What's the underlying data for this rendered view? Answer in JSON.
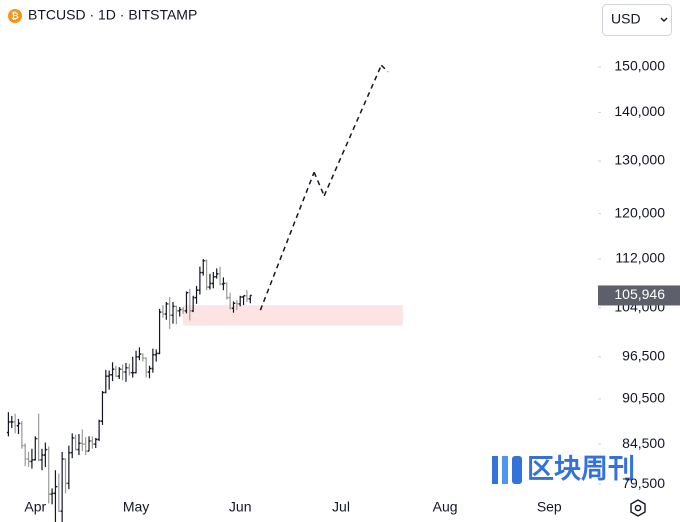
{
  "chart_data": {
    "type": "ohlc",
    "title": "BTCUSD · 1D · BITSTAMP",
    "currency": "USD",
    "watermark": "区块周刊",
    "log_scale": true,
    "grid": false,
    "up_color": "#131722",
    "down_color": "#9a9a9a",
    "ylim": [
      78200,
      166100
    ],
    "yticks": [
      {
        "value": 79500,
        "label": "79,500"
      },
      {
        "value": 84500,
        "label": "84,500"
      },
      {
        "value": 90500,
        "label": "90,500"
      },
      {
        "value": 96500,
        "label": "96,500"
      },
      {
        "value": 104000,
        "label": "104,000"
      },
      {
        "value": 112000,
        "label": "112,000"
      },
      {
        "value": 120000,
        "label": "120,000"
      },
      {
        "value": 130000,
        "label": "130,000"
      },
      {
        "value": 140000,
        "label": "140,000"
      },
      {
        "value": 150000,
        "label": "150,000"
      }
    ],
    "last_price": {
      "value": 105946,
      "label": "105,946"
    },
    "zone": {
      "low": 101200,
      "high": 104400,
      "color": "#fde4e4"
    },
    "categories": [
      null,
      null,
      null,
      null,
      null,
      null,
      null,
      null,
      "Apr",
      null,
      null,
      null,
      null,
      null,
      null,
      null,
      null,
      null,
      null,
      null,
      null,
      null,
      null,
      null,
      null,
      null,
      null,
      null,
      null,
      null,
      null,
      null,
      null,
      null,
      null,
      null,
      null,
      null,
      "May",
      null,
      null,
      null,
      null,
      null,
      null,
      null,
      null,
      null,
      null,
      null,
      null,
      null,
      null,
      null,
      null,
      null,
      null,
      null,
      null,
      null,
      null,
      null,
      null,
      null,
      null,
      null,
      null,
      null,
      null,
      "Jun",
      null,
      null,
      null,
      null,
      null,
      null,
      null,
      null,
      null,
      null,
      null,
      null,
      null,
      null,
      null,
      null,
      null,
      null,
      null,
      null,
      null,
      null,
      null,
      null,
      null,
      null,
      null,
      null,
      null,
      "Jul",
      null,
      null,
      null,
      null,
      null,
      null,
      null,
      null,
      null,
      null,
      null,
      null,
      null,
      null,
      null,
      null,
      null,
      null,
      null,
      null,
      null,
      null,
      null,
      null,
      null,
      null,
      null,
      null,
      null,
      null,
      "Aug",
      null,
      null,
      null,
      null,
      null,
      null,
      null,
      null,
      null,
      null,
      null,
      null,
      null,
      null,
      null,
      null,
      null,
      null,
      null,
      null,
      null,
      null,
      null,
      null,
      null,
      null,
      null,
      null,
      null,
      null,
      "Sep",
      null,
      null,
      null,
      null,
      null,
      null,
      null,
      null,
      null,
      null,
      null,
      null,
      null,
      null
    ],
    "values": [
      [
        86000,
        88700,
        85500,
        87400
      ],
      [
        87400,
        88200,
        86600,
        87400
      ],
      [
        87400,
        88500,
        85900,
        86900
      ],
      [
        86900,
        87800,
        85800,
        87200
      ],
      [
        87200,
        87500,
        83900,
        84300
      ],
      [
        84300,
        84600,
        81700,
        82600
      ],
      [
        82600,
        83500,
        81600,
        82300
      ],
      [
        82300,
        83900,
        81400,
        82500
      ],
      [
        82500,
        85500,
        82400,
        85200
      ],
      [
        85200,
        88500,
        82300,
        82500
      ],
      [
        82500,
        83900,
        81200,
        83100
      ],
      [
        83100,
        84700,
        81600,
        83800
      ],
      [
        83800,
        84200,
        77200,
        78300
      ],
      [
        78300,
        79000,
        77100,
        78400
      ],
      [
        78400,
        81200,
        74500,
        79200
      ],
      [
        79200,
        80800,
        76200,
        76300
      ],
      [
        76300,
        83500,
        74600,
        82600
      ],
      [
        82600,
        82700,
        78400,
        79600
      ],
      [
        79600,
        84300,
        78900,
        83400
      ],
      [
        83400,
        85900,
        82700,
        85300
      ],
      [
        85300,
        85700,
        83700,
        83800
      ],
      [
        83800,
        85800,
        83100,
        84600
      ],
      [
        84600,
        86400,
        83600,
        84500
      ],
      [
        84500,
        85400,
        83100,
        83600
      ],
      [
        83600,
        85500,
        83600,
        84900
      ],
      [
        84900,
        85500,
        83900,
        84500
      ],
      [
        84500,
        85300,
        84000,
        85100
      ],
      [
        85100,
        87700,
        84900,
        87500
      ],
      [
        87500,
        91600,
        87000,
        91400
      ],
      [
        91400,
        94600,
        91300,
        93700
      ],
      [
        93700,
        94500,
        91800,
        93900
      ],
      [
        93900,
        95700,
        93000,
        94700
      ],
      [
        94700,
        95200,
        93600,
        93700
      ],
      [
        93700,
        95000,
        93300,
        94700
      ],
      [
        94700,
        95400,
        93100,
        94300
      ],
      [
        94300,
        95600,
        92900,
        94900
      ],
      [
        94900,
        95500,
        93800,
        94200
      ],
      [
        94200,
        96500,
        93500,
        94200
      ],
      [
        94200,
        97400,
        94100,
        96500
      ],
      [
        96500,
        97900,
        96000,
        96900
      ],
      [
        96900,
        97000,
        95800,
        96300
      ],
      [
        96300,
        96400,
        93500,
        94300
      ],
      [
        94300,
        95200,
        93400,
        94800
      ],
      [
        94800,
        97700,
        94200,
        96800
      ],
      [
        96800,
        97600,
        95800,
        97000
      ],
      [
        97000,
        103800,
        96900,
        103300
      ],
      [
        103300,
        104400,
        102400,
        103000
      ],
      [
        103000,
        104900,
        102100,
        104600
      ],
      [
        104600,
        105700,
        100700,
        102800
      ],
      [
        102800,
        104900,
        101500,
        104200
      ],
      [
        104200,
        104300,
        101400,
        103500
      ],
      [
        103500,
        104100,
        102600,
        103700
      ],
      [
        103700,
        104100,
        103000,
        103500
      ],
      [
        103500,
        106600,
        103100,
        106400
      ],
      [
        106400,
        107000,
        102000,
        103500
      ],
      [
        103500,
        105900,
        103300,
        105600
      ],
      [
        105600,
        107500,
        104600,
        106800
      ],
      [
        106800,
        110700,
        106100,
        109700
      ],
      [
        109700,
        112000,
        109200,
        111700
      ],
      [
        111700,
        111900,
        106800,
        107300
      ],
      [
        107300,
        109500,
        106900,
        107900
      ],
      [
        107900,
        109800,
        107100,
        109000
      ],
      [
        109000,
        110400,
        108700,
        109500
      ],
      [
        109500,
        110700,
        107600,
        107800
      ],
      [
        107800,
        108900,
        106800,
        107900
      ],
      [
        107900,
        108100,
        105300,
        105600
      ],
      [
        105600,
        106400,
        103700,
        103900
      ],
      [
        103900,
        105000,
        103200,
        104700
      ],
      [
        104700,
        105200,
        103600,
        104600
      ],
      [
        104600,
        105900,
        104200,
        105700
      ],
      [
        105700,
        105900,
        104400,
        105900
      ],
      [
        105900,
        106800,
        104900,
        105400
      ],
      [
        105400,
        106000,
        104700,
        105946
      ],
      null,
      null,
      null,
      null,
      null,
      null,
      null,
      null,
      null,
      null,
      null,
      null,
      null,
      null,
      null,
      null,
      null,
      null,
      null,
      null,
      null,
      null,
      null,
      null,
      null,
      null,
      null,
      null,
      null,
      null,
      null,
      null,
      null,
      null,
      null,
      null,
      null,
      null,
      null,
      null,
      null,
      null,
      null,
      null,
      null,
      null,
      null,
      null,
      null,
      null,
      null,
      null,
      null,
      null,
      null,
      null,
      null,
      null,
      null,
      null,
      null,
      null,
      null,
      null,
      null,
      null,
      null,
      null,
      null,
      null,
      null,
      null,
      null,
      null,
      null,
      null,
      null,
      null,
      null,
      null,
      null,
      null,
      null,
      null,
      null,
      null,
      null,
      null,
      null,
      null,
      null,
      null,
      null,
      null,
      null,
      null,
      null,
      null,
      null,
      null,
      null,
      null,
      null
    ],
    "projection": {
      "color": "#131722",
      "values": [
        null,
        null,
        null,
        null,
        null,
        null,
        null,
        null,
        null,
        null,
        null,
        null,
        null,
        null,
        null,
        null,
        null,
        null,
        null,
        null,
        null,
        null,
        null,
        null,
        null,
        null,
        null,
        null,
        null,
        null,
        null,
        null,
        null,
        null,
        null,
        null,
        null,
        null,
        null,
        null,
        null,
        null,
        null,
        null,
        null,
        null,
        null,
        null,
        null,
        null,
        null,
        null,
        null,
        null,
        null,
        null,
        null,
        null,
        null,
        null,
        null,
        null,
        null,
        null,
        null,
        null,
        null,
        null,
        null,
        null,
        null,
        null,
        null,
        null,
        null,
        103600,
        null,
        null,
        null,
        null,
        null,
        null,
        null,
        null,
        null,
        null,
        null,
        null,
        null,
        null,
        null,
        127800,
        null,
        null,
        123300,
        null,
        null,
        null,
        null,
        null,
        null,
        null,
        null,
        null,
        null,
        null,
        null,
        null,
        null,
        null,
        null,
        150400,
        null,
        148900,
        null,
        null,
        null,
        null,
        null,
        null,
        null,
        null,
        null,
        null,
        null,
        null,
        null,
        null,
        null,
        null,
        null,
        null,
        null,
        null,
        null,
        null,
        null,
        null,
        null,
        null,
        null,
        null,
        null,
        null,
        null,
        null,
        null,
        null,
        null,
        null,
        null,
        null,
        null,
        null,
        null,
        null,
        null,
        null,
        null,
        null,
        null,
        null,
        null,
        null,
        null,
        null,
        null,
        null,
        null,
        null,
        null,
        null,
        null,
        null,
        null,
        null
      ]
    }
  }
}
